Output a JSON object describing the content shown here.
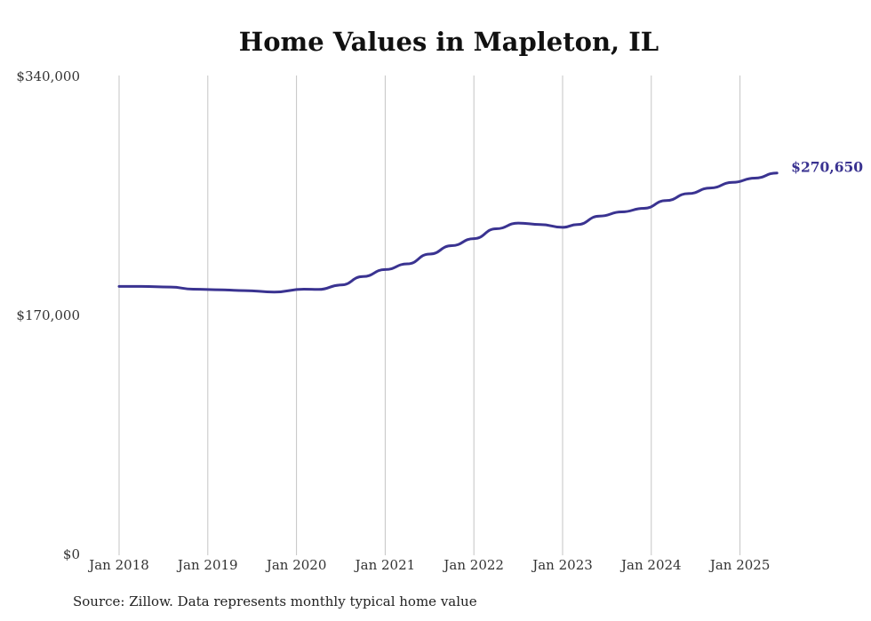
{
  "chart_data": {
    "type": "line",
    "title": "Home Values in Mapleton, IL",
    "source": "Source: Zillow. Data represents monthly typical home value",
    "y_ticks": [
      {
        "value": 0,
        "label": "$0"
      },
      {
        "value": 170000,
        "label": "$170,000"
      },
      {
        "value": 340000,
        "label": "$340,000"
      }
    ],
    "ylim": [
      0,
      340000
    ],
    "x_ticks": [
      {
        "value": "2018-01",
        "label": "Jan 2018"
      },
      {
        "value": "2019-01",
        "label": "Jan 2019"
      },
      {
        "value": "2020-01",
        "label": "Jan 2020"
      },
      {
        "value": "2021-01",
        "label": "Jan 2021"
      },
      {
        "value": "2022-01",
        "label": "Jan 2022"
      },
      {
        "value": "2023-01",
        "label": "Jan 2023"
      },
      {
        "value": "2024-01",
        "label": "Jan 2024"
      },
      {
        "value": "2025-01",
        "label": "Jan 2025"
      }
    ],
    "grid": "vertical",
    "line_color": "#3a3391",
    "end_label": "$270,650",
    "series": [
      {
        "x": [
          "2018-01",
          "2018-04",
          "2018-08",
          "2018-11",
          "2019-03",
          "2019-06",
          "2019-10",
          "2020-02",
          "2020-04",
          "2020-07",
          "2020-10",
          "2021-01",
          "2021-04",
          "2021-07",
          "2021-10",
          "2022-01",
          "2022-04",
          "2022-07",
          "2022-10",
          "2023-01",
          "2023-03",
          "2023-06",
          "2023-09",
          "2023-12",
          "2024-03",
          "2024-06",
          "2024-09",
          "2024-12",
          "2025-03",
          "2025-06"
        ],
        "y": [
          190000,
          190000,
          189500,
          188000,
          187500,
          187000,
          186000,
          188000,
          187800,
          191000,
          197000,
          202000,
          206000,
          213000,
          219000,
          224000,
          231000,
          235000,
          234000,
          232000,
          234000,
          240000,
          243000,
          245500,
          251000,
          256000,
          260000,
          264000,
          267000,
          270650
        ]
      }
    ]
  }
}
